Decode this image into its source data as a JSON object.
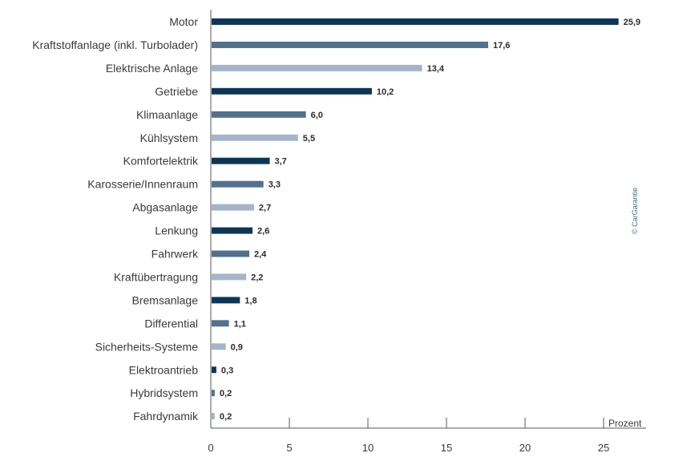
{
  "chart_data": {
    "type": "bar",
    "orientation": "horizontal",
    "categories": [
      "Motor",
      "Kraftstoffanlage (inkl. Turbolader)",
      "Elektrische Anlage",
      "Getriebe",
      "Klimaanlage",
      "Kühlsystem",
      "Komfortelektrik",
      "Karosserie/Innenraum",
      "Abgasanlage",
      "Lenkung",
      "Fahrwerk",
      "Kraftübertragung",
      "Bremsanlage",
      "Differential",
      "Sicherheits-Systeme",
      "Elektroantrieb",
      "Hybridsystem",
      "Fahrdynamik"
    ],
    "values": [
      25.9,
      17.6,
      13.4,
      10.2,
      6.0,
      5.5,
      3.7,
      3.3,
      2.7,
      2.6,
      2.4,
      2.2,
      1.8,
      1.1,
      0.9,
      0.3,
      0.2,
      0.2
    ],
    "value_labels": [
      "25,9",
      "17,6",
      "13,4",
      "10,2",
      "6,0",
      "5,5",
      "3,7",
      "3,3",
      "2,7",
      "2,6",
      "2,4",
      "2,2",
      "1,8",
      "1,1",
      "0,9",
      "0,3",
      "0,2",
      "0,2"
    ],
    "xlim": [
      0,
      25
    ],
    "xticks": [
      0,
      5,
      10,
      15,
      20,
      25
    ],
    "xtick_labels": [
      "0",
      "5",
      "10",
      "15",
      "20",
      "25"
    ],
    "xlabel": "Prozent",
    "grid": false,
    "colors": [
      "#0d3557",
      "#52708f",
      "#a4b5ca"
    ],
    "color_pattern": "cycle"
  },
  "credit": "© CarGarantie"
}
